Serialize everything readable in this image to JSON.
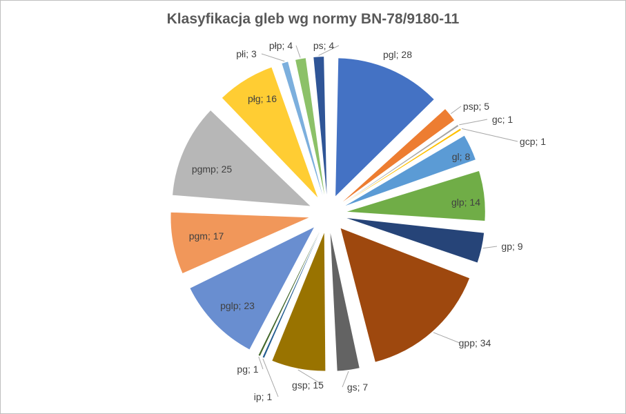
{
  "chart_data": {
    "type": "pie",
    "title": "Klasyfikacja gleb wg normy BN-78/9180-11",
    "slices": [
      {
        "label": "pgl",
        "value": 28,
        "text": "pgl; 28",
        "color": "#4472C4"
      },
      {
        "label": "psp",
        "value": 5,
        "text": "psp; 5",
        "color": "#ED7D31"
      },
      {
        "label": "gc",
        "value": 1,
        "text": "gc; 1",
        "color": "#A5A5A5"
      },
      {
        "label": "gcp",
        "value": 1,
        "text": "gcp; 1",
        "color": "#FFC000"
      },
      {
        "label": "gl",
        "value": 8,
        "text": "gl; 8",
        "color": "#5B9BD5"
      },
      {
        "label": "glp",
        "value": 14,
        "text": "glp; 14",
        "color": "#70AD47"
      },
      {
        "label": "gp",
        "value": 9,
        "text": "gp; 9",
        "color": "#264478"
      },
      {
        "label": "gpp",
        "value": 34,
        "text": "gpp; 34",
        "color": "#9E480E"
      },
      {
        "label": "gs",
        "value": 7,
        "text": "gs; 7",
        "color": "#636363"
      },
      {
        "label": "gsp",
        "value": 15,
        "text": "gsp; 15",
        "color": "#997300"
      },
      {
        "label": "ip",
        "value": 1,
        "text": "ip; 1",
        "color": "#255E91"
      },
      {
        "label": "pg",
        "value": 1,
        "text": "pg; 1",
        "color": "#43682B"
      },
      {
        "label": "pglp",
        "value": 23,
        "text": "pglp; 23",
        "color": "#698ED0"
      },
      {
        "label": "pgm",
        "value": 17,
        "text": "pgm; 17",
        "color": "#F1975A"
      },
      {
        "label": "pgmp",
        "value": 25,
        "text": "pgmp; 25",
        "color": "#B7B7B7"
      },
      {
        "label": "płg",
        "value": 16,
        "text": "płg; 16",
        "color": "#FFCD33"
      },
      {
        "label": "płi",
        "value": 3,
        "text": "płi; 3",
        "color": "#7CAFDD"
      },
      {
        "label": "płp",
        "value": 4,
        "text": "płp; 4",
        "color": "#8CC168"
      },
      {
        "label": "ps",
        "value": 4,
        "text": "ps; 4",
        "color": "#2F5597"
      }
    ],
    "legend": "none",
    "exploded": true
  }
}
